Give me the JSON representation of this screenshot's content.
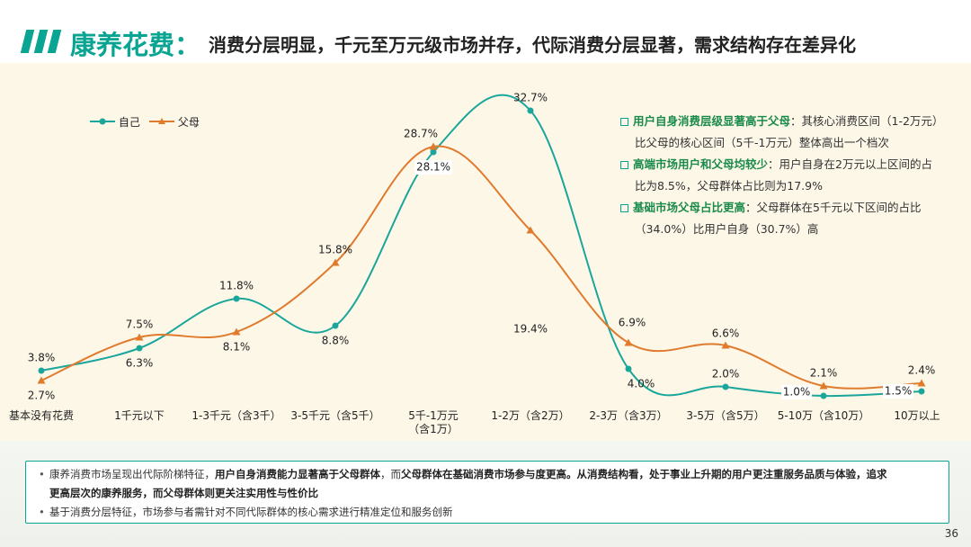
{
  "header": {
    "title_main": "康养花费：",
    "title_sub": "消费分层明显，千元至万元级市场并存，代际消费分层显著，需求结构存在差异化",
    "accent_color": "#0aa592"
  },
  "legend": [
    {
      "name": "自己",
      "color": "#1aa69b",
      "marker": "circle"
    },
    {
      "name": "父母",
      "color": "#e07b2e",
      "marker": "triangle"
    }
  ],
  "chart_data": {
    "type": "line",
    "categories": [
      "基本没有花费",
      "1千元以下",
      "1-3千元（含3千）",
      "3-5千元（含5千）",
      "5千-1万元（含1万）",
      "1-2万（含2万）",
      "2-3万（含3万）",
      "3-5万（含5万）",
      "5-10万（含10万）",
      "10万以上"
    ],
    "series": [
      {
        "name": "自己",
        "values": [
          3.8,
          6.3,
          11.8,
          8.8,
          28.1,
          32.7,
          4.0,
          2.0,
          1.0,
          1.5
        ],
        "labels": [
          "3.8%",
          "6.3%",
          "11.8%",
          "8.8%",
          "28.1%",
          "32.7%",
          "4.0%",
          "2.0%",
          "1.0%",
          "1.5%"
        ]
      },
      {
        "name": "父母",
        "values": [
          2.7,
          7.5,
          8.1,
          15.8,
          28.7,
          19.4,
          6.9,
          6.6,
          2.1,
          2.4
        ],
        "labels": [
          "2.7%",
          "7.5%",
          "8.1%",
          "15.8%",
          "28.7%",
          "19.4%",
          "6.9%",
          "6.6%",
          "2.1%",
          "2.4%"
        ]
      }
    ],
    "ylim": [
      0,
      35
    ],
    "grid": false,
    "legend_position": "top-left"
  },
  "categories_display": [
    [
      "基本没有花费"
    ],
    [
      "1千元以下"
    ],
    [
      "1-3千元（含3千）"
    ],
    [
      "3-5千元（含5千）"
    ],
    [
      "5千-1万元",
      "（含1万）"
    ],
    [
      "1-2万（含2万）"
    ],
    [
      "2-3万（含3万）"
    ],
    [
      "3-5万（含5万）"
    ],
    [
      "5-10万（含10万）"
    ],
    [
      "10万以上"
    ]
  ],
  "notes": [
    {
      "title": "用户自身消费层级显著高于父母",
      "line1": "：其核心消费区间（1-2万元）",
      "line2": "比父母的核心区间（5千-1万元）整体高出一个档次"
    },
    {
      "title": "高端市场用户和父母均较少",
      "line1": "：用户自身在2万元以上区间的占",
      "line2": "比为8.5%，父母群体占比则为17.9%"
    },
    {
      "title": "基础市场父母占比更高",
      "line1": "：父母群体在5千元以下区间的占比",
      "line2": "（34.0%）比用户自身（30.7%）高"
    }
  ],
  "summary": {
    "line1_a": "康养消费市场呈现出代际阶梯特征，",
    "line1_b": "用户自身消费能力显著高于父母群体",
    "line1_c": "，而",
    "line1_d": "父母群体在基础消费市场参与度更高。从消费结构看，处于事业上升期的用户更注重服务品质与体验，追求",
    "line1_e": "更高层次的康养服务，而父母群体则更关注实用性与性价比",
    "line2": "基于消费分层特征，市场参与者需针对不同代际群体的核心需求进行精准定位和服务创新"
  },
  "page_number": "36"
}
